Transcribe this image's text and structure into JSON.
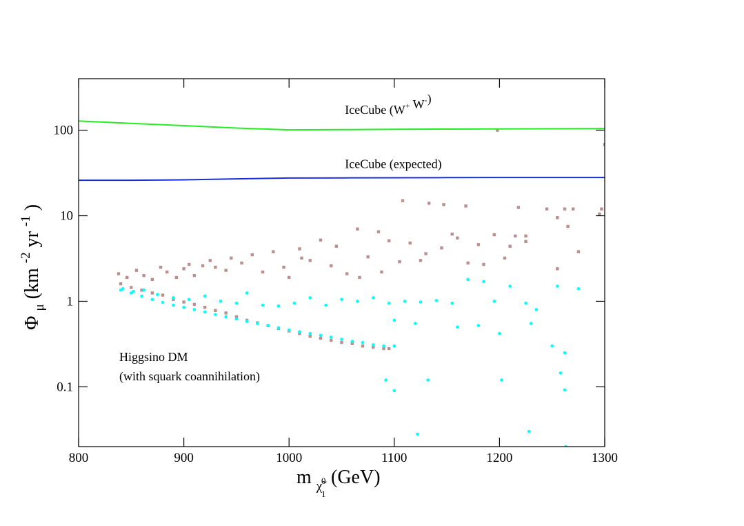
{
  "chart_data": {
    "type": "scatter",
    "title": "",
    "xlabel": {
      "main": "m",
      "sub": "χ̃",
      "sub_sub": "1",
      "sub_sup": "0",
      "unit": "(GeV)"
    },
    "ylabel": {
      "main": "Φ",
      "sub": "μ",
      "unit_open": "(km",
      "exp1": "-2",
      "mid": " yr",
      "exp2": "-1",
      "unit_close": ")"
    },
    "xlim": [
      800,
      1300
    ],
    "ylim": [
      0.02,
      400
    ],
    "yscale": "log",
    "grid": false,
    "x_ticks": [
      {
        "value": 800,
        "label": "800"
      },
      {
        "value": 900,
        "label": "900"
      },
      {
        "value": 1000,
        "label": "1000"
      },
      {
        "value": 1100,
        "label": "1100"
      },
      {
        "value": 1200,
        "label": "1200"
      },
      {
        "value": 1300,
        "label": "1300"
      }
    ],
    "y_ticks": [
      {
        "value": 0.1,
        "label": "0.1"
      },
      {
        "value": 1,
        "label": "1"
      },
      {
        "value": 10,
        "label": "10"
      },
      {
        "value": 100,
        "label": "100"
      }
    ],
    "lines": [
      {
        "name": "IceCube (W+ W-)",
        "color": "#22ee22",
        "x": [
          800,
          850,
          900,
          950,
          1000,
          1050,
          1100,
          1150,
          1200,
          1250,
          1300
        ],
        "y": [
          128,
          120,
          113,
          106,
          101,
          101.5,
          102.5,
          103,
          103.5,
          104,
          104.5
        ]
      },
      {
        "name": "IceCube (expected)",
        "color": "#1a2ed8",
        "x": [
          800,
          850,
          900,
          950,
          1000,
          1050,
          1100,
          1150,
          1200,
          1250,
          1300
        ],
        "y": [
          26,
          26,
          26.3,
          27,
          27.6,
          27.7,
          27.8,
          27.9,
          28,
          28,
          28
        ]
      }
    ],
    "line_labels": [
      {
        "parts": [
          {
            "t": "IceCube (W"
          },
          {
            "t": "+",
            "sup": true
          },
          {
            "t": " W"
          },
          {
            "t": "-",
            "sup": true
          },
          {
            "t": ")"
          }
        ],
        "x": 1040,
        "y": 155
      },
      {
        "parts": [
          {
            "t": "IceCube (expected)"
          }
        ],
        "x": 1040,
        "y": 36
      }
    ],
    "scatter_series": [
      {
        "name": "brown points",
        "color": "#bc8f8f",
        "marker": "square",
        "x": [
          838,
          846,
          855,
          862,
          870,
          878,
          884,
          893,
          900,
          905,
          910,
          918,
          925,
          930,
          940,
          945,
          955,
          965,
          975,
          985,
          995,
          1000,
          1010,
          1020,
          1030,
          1045,
          1055,
          1065,
          1075,
          1085,
          1095,
          1105,
          1115,
          1130,
          1145,
          1160,
          1170,
          1180,
          1195,
          1205,
          1215,
          1225,
          1245,
          1255,
          1265,
          1270,
          1295,
          1300,
          1108,
          1133,
          1147,
          1168,
          1198,
          1218,
          1262,
          1297,
          1012,
          1040,
          1067,
          1088,
          1125,
          1155,
          1185,
          1210,
          1225,
          1255,
          1275
        ],
        "y": [
          2.1,
          1.9,
          2.3,
          2.0,
          1.8,
          2.5,
          2.2,
          1.9,
          2.4,
          2.7,
          2.0,
          2.6,
          3.0,
          2.5,
          2.3,
          3.2,
          2.8,
          3.5,
          2.2,
          3.8,
          2.5,
          1.9,
          4.1,
          3.0,
          5.2,
          4.4,
          2.1,
          7.0,
          3.3,
          6.5,
          5.1,
          2.9,
          4.8,
          3.6,
          4.2,
          5.5,
          2.8,
          4.6,
          6.0,
          3.2,
          5.8,
          5.0,
          12.0,
          9.5,
          7.5,
          12.0,
          10.5,
          68,
          15.0,
          14.0,
          13.5,
          13.0,
          100,
          12.5,
          12.0,
          12.0,
          3.2,
          2.6,
          1.9,
          2.2,
          3.0,
          6.1,
          2.7,
          4.4,
          5.8,
          2.4,
          3.8
        ]
      },
      {
        "name": "brown band",
        "color": "#bc8f8f",
        "marker": "square",
        "x": [
          840,
          850,
          860,
          870,
          880,
          890,
          900,
          910,
          920,
          930,
          940,
          950,
          960,
          970,
          980,
          990,
          1000,
          1010,
          1020,
          1030,
          1040,
          1050,
          1060,
          1070,
          1080,
          1090,
          1095
        ],
        "y": [
          1.6,
          1.45,
          1.35,
          1.25,
          1.18,
          1.05,
          0.98,
          0.92,
          0.85,
          0.78,
          0.73,
          0.66,
          0.6,
          0.56,
          0.52,
          0.48,
          0.45,
          0.42,
          0.39,
          0.37,
          0.35,
          0.33,
          0.32,
          0.3,
          0.29,
          0.28,
          0.28
        ]
      },
      {
        "name": "cyan points",
        "color": "#00ffff",
        "marker": "circle",
        "x": [
          842,
          852,
          862,
          875,
          890,
          905,
          920,
          935,
          950,
          960,
          975,
          990,
          1005,
          1020,
          1035,
          1050,
          1065,
          1080,
          1095,
          1110,
          1125,
          1140,
          1155,
          1170,
          1185,
          1195,
          1210,
          1225,
          1235,
          1255,
          1275,
          1100,
          1120,
          1160,
          1180,
          1200,
          1230,
          1250,
          1262,
          1092,
          1132,
          1202,
          1228,
          1258,
          1100,
          1122,
          1262,
          1263
        ],
        "y": [
          1.4,
          1.3,
          1.35,
          1.2,
          1.1,
          1.05,
          1.15,
          1.0,
          0.95,
          1.25,
          0.9,
          0.88,
          0.95,
          1.1,
          0.9,
          1.05,
          1.0,
          1.1,
          0.95,
          1.0,
          0.98,
          1.02,
          0.95,
          1.8,
          1.7,
          1.0,
          1.5,
          0.95,
          0.8,
          1.5,
          1.4,
          0.6,
          0.55,
          0.5,
          0.52,
          0.42,
          0.55,
          0.3,
          0.25,
          0.12,
          0.12,
          0.12,
          0.03,
          0.145,
          0.09,
          0.028,
          0.092,
          0.02
        ]
      },
      {
        "name": "cyan band",
        "color": "#00ffff",
        "marker": "circle",
        "x": [
          840,
          850,
          860,
          870,
          880,
          890,
          900,
          910,
          920,
          930,
          940,
          950,
          960,
          970,
          980,
          990,
          1000,
          1010,
          1020,
          1030,
          1040,
          1050,
          1060,
          1070,
          1080,
          1090,
          1100
        ],
        "y": [
          1.35,
          1.25,
          1.15,
          1.05,
          0.97,
          0.9,
          0.85,
          0.8,
          0.75,
          0.7,
          0.66,
          0.62,
          0.58,
          0.55,
          0.52,
          0.49,
          0.46,
          0.44,
          0.42,
          0.4,
          0.38,
          0.36,
          0.34,
          0.33,
          0.31,
          0.3,
          0.3
        ]
      }
    ],
    "annotation": {
      "line1": "Higgsino DM",
      "line2": "(with squark coannihilation)",
      "x": 840,
      "y": 0.22
    }
  }
}
